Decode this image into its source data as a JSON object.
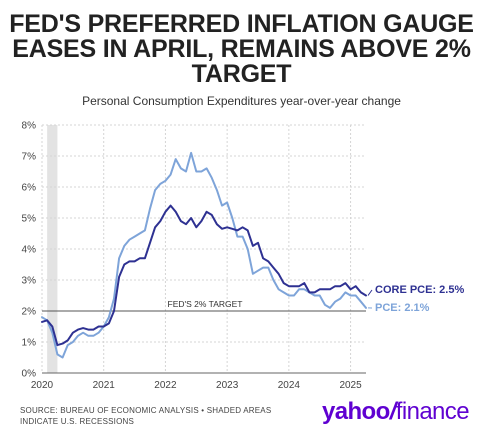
{
  "header": {
    "title_lines": [
      "FED'S PREFERRED INFLATION GAUGE",
      "EASES IN APRIL, REMAINS ABOVE 2%",
      "TARGET"
    ],
    "subtitle": "Personal Consumption Expenditures year-over-year change"
  },
  "footer": {
    "source_lines": [
      "SOURCE: BUREAU OF ECONOMIC ANALYSIS • SHADED AREAS",
      "INDICATE U.S. RECESSIONS"
    ],
    "logo": {
      "yahoo": "yahoo",
      "slash": "/",
      "finance": "finance",
      "color": "#5f01d1"
    }
  },
  "chart_data": {
    "type": "line",
    "title": "FED'S PREFERRED INFLATION GAUGE EASES IN APRIL, REMAINS ABOVE 2% TARGET",
    "subtitle": "Personal Consumption Expenditures year-over-year change",
    "xlabel": "",
    "ylabel": "",
    "x_range": [
      "2020-01",
      "2025-04"
    ],
    "x_ticks": [
      "2020",
      "2021",
      "2022",
      "2023",
      "2024",
      "2025"
    ],
    "ylim": [
      0,
      8
    ],
    "y_ticks": [
      "0%",
      "1%",
      "2%",
      "3%",
      "4%",
      "5%",
      "6%",
      "7%",
      "8%"
    ],
    "grid": true,
    "recession_shading": [
      {
        "start": "2020-02",
        "end": "2020-04"
      }
    ],
    "reference_line": {
      "value": 2.0,
      "label": "FED'S 2% TARGET"
    },
    "series": [
      {
        "name": "CORE PCE",
        "end_label": "CORE PCE: 2.5%",
        "color": "#2e3192",
        "points": [
          [
            "2020-01",
            1.65
          ],
          [
            "2020-02",
            1.7
          ],
          [
            "2020-03",
            1.5
          ],
          [
            "2020-04",
            0.9
          ],
          [
            "2020-05",
            0.95
          ],
          [
            "2020-06",
            1.05
          ],
          [
            "2020-07",
            1.3
          ],
          [
            "2020-08",
            1.4
          ],
          [
            "2020-09",
            1.45
          ],
          [
            "2020-10",
            1.4
          ],
          [
            "2020-11",
            1.4
          ],
          [
            "2020-12",
            1.5
          ],
          [
            "2021-01",
            1.5
          ],
          [
            "2021-02",
            1.6
          ],
          [
            "2021-03",
            2.0
          ],
          [
            "2021-04",
            3.1
          ],
          [
            "2021-05",
            3.5
          ],
          [
            "2021-06",
            3.6
          ],
          [
            "2021-07",
            3.6
          ],
          [
            "2021-08",
            3.7
          ],
          [
            "2021-09",
            3.7
          ],
          [
            "2021-10",
            4.2
          ],
          [
            "2021-11",
            4.7
          ],
          [
            "2021-12",
            4.9
          ],
          [
            "2022-01",
            5.2
          ],
          [
            "2022-02",
            5.4
          ],
          [
            "2022-03",
            5.2
          ],
          [
            "2022-04",
            4.9
          ],
          [
            "2022-05",
            4.8
          ],
          [
            "2022-06",
            5.0
          ],
          [
            "2022-07",
            4.7
          ],
          [
            "2022-08",
            4.9
          ],
          [
            "2022-09",
            5.2
          ],
          [
            "2022-10",
            5.1
          ],
          [
            "2022-11",
            4.8
          ],
          [
            "2022-12",
            4.65
          ],
          [
            "2023-01",
            4.7
          ],
          [
            "2023-02",
            4.65
          ],
          [
            "2023-03",
            4.6
          ],
          [
            "2023-04",
            4.7
          ],
          [
            "2023-05",
            4.6
          ],
          [
            "2023-06",
            4.1
          ],
          [
            "2023-07",
            4.2
          ],
          [
            "2023-08",
            3.7
          ],
          [
            "2023-09",
            3.6
          ],
          [
            "2023-10",
            3.4
          ],
          [
            "2023-11",
            3.2
          ],
          [
            "2023-12",
            2.9
          ],
          [
            "2024-01",
            2.8
          ],
          [
            "2024-02",
            2.8
          ],
          [
            "2024-03",
            2.8
          ],
          [
            "2024-04",
            2.9
          ],
          [
            "2024-05",
            2.6
          ],
          [
            "2024-06",
            2.6
          ],
          [
            "2024-07",
            2.7
          ],
          [
            "2024-08",
            2.7
          ],
          [
            "2024-09",
            2.7
          ],
          [
            "2024-10",
            2.8
          ],
          [
            "2024-11",
            2.8
          ],
          [
            "2024-12",
            2.9
          ],
          [
            "2025-01",
            2.7
          ],
          [
            "2025-02",
            2.8
          ],
          [
            "2025-03",
            2.6
          ],
          [
            "2025-04",
            2.5
          ]
        ]
      },
      {
        "name": "PCE",
        "end_label": "PCE: 2.1%",
        "color": "#7ea4d9",
        "points": [
          [
            "2020-01",
            1.8
          ],
          [
            "2020-02",
            1.7
          ],
          [
            "2020-03",
            1.3
          ],
          [
            "2020-04",
            0.6
          ],
          [
            "2020-05",
            0.5
          ],
          [
            "2020-06",
            0.9
          ],
          [
            "2020-07",
            1.0
          ],
          [
            "2020-08",
            1.2
          ],
          [
            "2020-09",
            1.3
          ],
          [
            "2020-10",
            1.2
          ],
          [
            "2020-11",
            1.2
          ],
          [
            "2020-12",
            1.3
          ],
          [
            "2021-01",
            1.5
          ],
          [
            "2021-02",
            1.8
          ],
          [
            "2021-03",
            2.4
          ],
          [
            "2021-04",
            3.7
          ],
          [
            "2021-05",
            4.1
          ],
          [
            "2021-06",
            4.3
          ],
          [
            "2021-07",
            4.4
          ],
          [
            "2021-08",
            4.5
          ],
          [
            "2021-09",
            4.6
          ],
          [
            "2021-10",
            5.3
          ],
          [
            "2021-11",
            5.9
          ],
          [
            "2021-12",
            6.1
          ],
          [
            "2022-01",
            6.2
          ],
          [
            "2022-02",
            6.4
          ],
          [
            "2022-03",
            6.9
          ],
          [
            "2022-04",
            6.6
          ],
          [
            "2022-05",
            6.5
          ],
          [
            "2022-06",
            7.1
          ],
          [
            "2022-07",
            6.5
          ],
          [
            "2022-08",
            6.5
          ],
          [
            "2022-09",
            6.6
          ],
          [
            "2022-10",
            6.3
          ],
          [
            "2022-11",
            5.9
          ],
          [
            "2022-12",
            5.4
          ],
          [
            "2023-01",
            5.5
          ],
          [
            "2023-02",
            5.0
          ],
          [
            "2023-03",
            4.4
          ],
          [
            "2023-04",
            4.4
          ],
          [
            "2023-05",
            4.0
          ],
          [
            "2023-06",
            3.2
          ],
          [
            "2023-07",
            3.3
          ],
          [
            "2023-08",
            3.4
          ],
          [
            "2023-09",
            3.4
          ],
          [
            "2023-10",
            3.0
          ],
          [
            "2023-11",
            2.7
          ],
          [
            "2023-12",
            2.6
          ],
          [
            "2024-01",
            2.5
          ],
          [
            "2024-02",
            2.5
          ],
          [
            "2024-03",
            2.7
          ],
          [
            "2024-04",
            2.7
          ],
          [
            "2024-05",
            2.6
          ],
          [
            "2024-06",
            2.5
          ],
          [
            "2024-07",
            2.5
          ],
          [
            "2024-08",
            2.2
          ],
          [
            "2024-09",
            2.1
          ],
          [
            "2024-10",
            2.3
          ],
          [
            "2024-11",
            2.4
          ],
          [
            "2024-12",
            2.6
          ],
          [
            "2025-01",
            2.5
          ],
          [
            "2025-02",
            2.5
          ],
          [
            "2025-03",
            2.3
          ],
          [
            "2025-04",
            2.1
          ]
        ]
      }
    ]
  }
}
